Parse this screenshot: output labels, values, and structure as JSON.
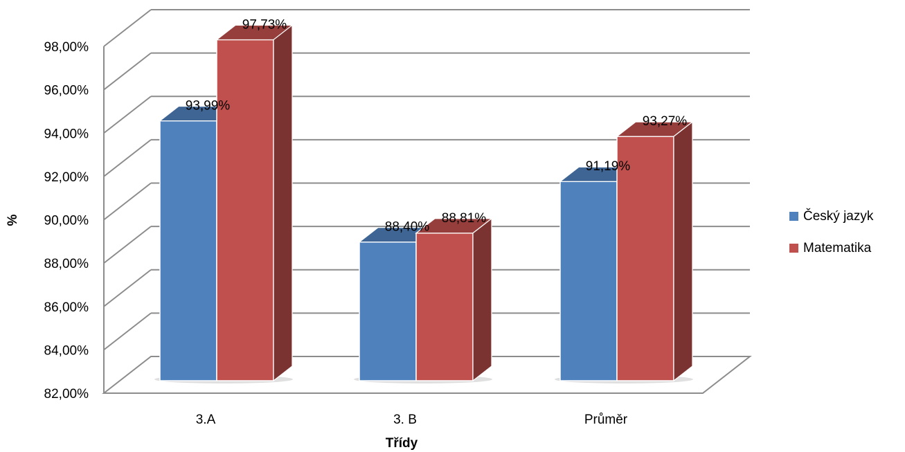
{
  "chart_data": {
    "type": "bar",
    "title": "",
    "xlabel": "Třídy",
    "ylabel": "%",
    "categories": [
      "3.A",
      "3. B",
      "Průměr"
    ],
    "series": [
      {
        "name": "Český jazyk",
        "values": [
          93.99,
          88.4,
          91.19
        ],
        "labels": [
          "93,99%",
          "88,40%",
          "91,19%"
        ],
        "color": "#4F81BD"
      },
      {
        "name": "Matematika",
        "values": [
          97.73,
          88.81,
          93.27
        ],
        "labels": [
          "97,73%",
          "88,81%",
          "93,27%"
        ],
        "color": "#C0504D"
      }
    ],
    "ylim": [
      82,
      98
    ],
    "yticks": [
      82,
      84,
      86,
      88,
      90,
      92,
      94,
      96,
      98
    ],
    "ytick_labels": [
      "82,00%",
      "84,00%",
      "86,00%",
      "88,00%",
      "90,00%",
      "92,00%",
      "94,00%",
      "96,00%",
      "98,00%"
    ],
    "grid": true,
    "three_d": true,
    "legend_position": "right"
  }
}
